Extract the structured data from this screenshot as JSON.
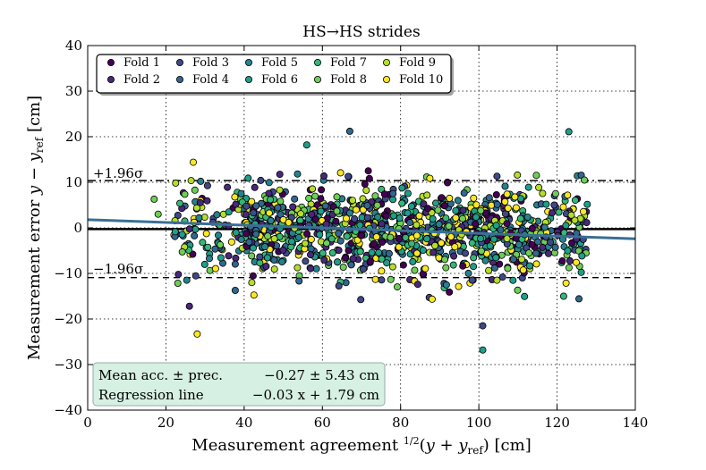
{
  "chart_data": {
    "type": "scatter",
    "title": "HS→HS strides",
    "xlabel": "Measurement agreement ½(y + y_ref) [cm]",
    "xlabel_parts": {
      "pre": "Measurement agreement ",
      "half_num": "1",
      "half_den": "2",
      "y": "y",
      "plus": " + ",
      "y2": "y",
      "ref": "ref",
      "post": " [cm]"
    },
    "ylabel": "Measurement error y − y_ref [cm]",
    "ylabel_parts": {
      "pre": "Measurement error ",
      "y": "y",
      "minus": " − ",
      "y2": "y",
      "ref": "ref",
      "post": " [cm]"
    },
    "xlim": [
      0,
      140
    ],
    "ylim": [
      -40,
      40
    ],
    "xticks": [
      0,
      20,
      40,
      60,
      80,
      100,
      120,
      140
    ],
    "yticks": [
      -40,
      -30,
      -20,
      -10,
      0,
      10,
      20,
      30,
      40
    ],
    "grid": true,
    "legend_position": "top-left",
    "n_folds": 10,
    "series": [
      {
        "name": "Fold 1",
        "color": "#440154"
      },
      {
        "name": "Fold 2",
        "color": "#482878"
      },
      {
        "name": "Fold 3",
        "color": "#3e4989"
      },
      {
        "name": "Fold 4",
        "color": "#31688e"
      },
      {
        "name": "Fold 5",
        "color": "#26828e"
      },
      {
        "name": "Fold 6",
        "color": "#1f9e89"
      },
      {
        "name": "Fold 7",
        "color": "#35b779"
      },
      {
        "name": "Fold 8",
        "color": "#6ece58"
      },
      {
        "name": "Fold 9",
        "color": "#b5de2b"
      },
      {
        "name": "Fold 10",
        "color": "#fde725"
      }
    ],
    "points_per_fold": 120,
    "x_range_of_data": [
      16,
      128
    ],
    "mean_error": -0.27,
    "precision": 5.43,
    "upper_limit": 10.37,
    "lower_limit": -10.91,
    "upper_label": "+1.96σ",
    "lower_label": "−1.96σ",
    "regression": {
      "slope": -0.03,
      "intercept": 1.79,
      "color": "#3a6f94"
    },
    "outliers": [
      {
        "x": 67,
        "y": 21.2,
        "fold": 3
      },
      {
        "x": 56,
        "y": 18.2,
        "fold": 5
      },
      {
        "x": 123,
        "y": 21.1,
        "fold": 5
      },
      {
        "x": 28,
        "y": -23.3,
        "fold": 9
      },
      {
        "x": 101,
        "y": -21.5,
        "fold": 2
      },
      {
        "x": 101,
        "y": -26.8,
        "fold": 5
      },
      {
        "x": 26,
        "y": -17.2,
        "fold": 1
      },
      {
        "x": 18,
        "y": 3,
        "fold": 7
      },
      {
        "x": 17,
        "y": 6.3,
        "fold": 7
      },
      {
        "x": 27,
        "y": 14.4,
        "fold": 9
      }
    ],
    "summary_box": {
      "row1_label": "Mean acc. ± prec.",
      "row1_value": "−0.27 ± 5.43 cm",
      "row2_label": "Regression line",
      "row2_value": "−0.03 x + 1.79 cm",
      "bg_color": "#d6f0e3"
    }
  }
}
